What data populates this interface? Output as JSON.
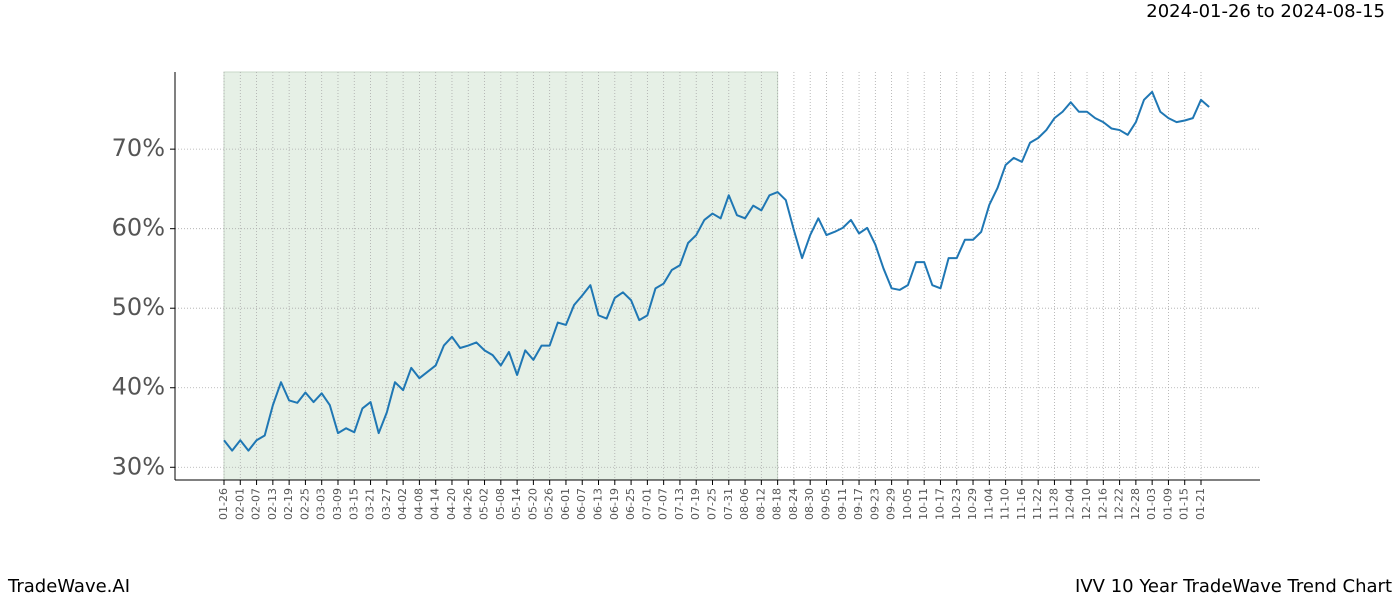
{
  "chart_data": {
    "type": "line",
    "title": "IVV 10 Year TradeWave Trend Chart",
    "subtitle": "2024-01-26 to 2024-08-15",
    "brand": "TradeWave.AI",
    "categories": [
      "01-26",
      null,
      "02-01",
      null,
      "02-07",
      null,
      "02-13",
      null,
      "02-19",
      null,
      "02-25",
      null,
      "03-03",
      null,
      "03-09",
      null,
      "03-15",
      null,
      "03-21",
      null,
      "03-27",
      null,
      "04-02",
      null,
      "04-08",
      null,
      "04-14",
      null,
      "04-20",
      null,
      "04-26",
      null,
      "05-02",
      null,
      "05-08",
      null,
      "05-14",
      null,
      "05-20",
      null,
      "05-26",
      null,
      "06-01",
      null,
      "06-07",
      null,
      "06-13",
      null,
      "06-19",
      null,
      "06-25",
      null,
      "07-01",
      null,
      "07-07",
      null,
      "07-13",
      null,
      "07-19",
      null,
      "07-25",
      null,
      "07-31",
      null,
      "08-06",
      null,
      "08-12",
      null,
      "08-18",
      null,
      "08-24",
      null,
      "08-30",
      null,
      "09-05",
      null,
      "09-11",
      null,
      "09-17",
      null,
      "09-23",
      null,
      "09-29",
      null,
      "10-05",
      null,
      "10-11",
      null,
      "10-17",
      null,
      "10-23",
      null,
      "10-29",
      null,
      "11-04",
      null,
      "11-10",
      null,
      "11-16",
      null,
      "11-22",
      null,
      "11-28",
      null,
      "12-04",
      null,
      "12-10",
      null,
      "12-16",
      null,
      "12-22",
      null,
      "12-28",
      null,
      "01-03",
      null,
      "01-09",
      null,
      "01-15",
      null,
      "01-21",
      null
    ],
    "series": [
      {
        "name": "IVV",
        "color": "#1f77b4",
        "values": [
          33.4,
          32.1,
          33.4,
          32.1,
          33.4,
          34.0,
          37.8,
          40.7,
          38.4,
          38.1,
          39.4,
          38.2,
          39.3,
          37.8,
          34.3,
          34.9,
          34.4,
          37.4,
          38.2,
          34.3,
          36.9,
          40.7,
          39.7,
          42.5,
          41.2,
          42.0,
          42.8,
          45.3,
          46.4,
          45.0,
          45.3,
          45.7,
          44.7,
          44.1,
          42.8,
          44.5,
          41.6,
          44.7,
          43.5,
          45.3,
          45.3,
          48.2,
          47.9,
          50.4,
          51.6,
          52.9,
          49.1,
          48.7,
          51.3,
          52.0,
          51.0,
          48.5,
          49.1,
          52.5,
          53.1,
          54.8,
          55.4,
          58.2,
          59.2,
          61.1,
          61.9,
          61.3,
          64.2,
          61.7,
          61.3,
          62.9,
          62.3,
          64.2,
          64.6,
          63.6,
          59.8,
          56.3,
          59.2,
          61.3,
          59.2,
          59.6,
          60.1,
          61.1,
          59.4,
          60.1,
          58.0,
          55.0,
          52.5,
          52.3,
          52.9,
          55.8,
          55.8,
          52.9,
          52.5,
          56.3,
          56.3,
          58.6,
          58.6,
          59.6,
          63.0,
          65.1,
          68.0,
          68.9,
          68.4,
          70.8,
          71.4,
          72.4,
          73.9,
          74.7,
          75.9,
          74.7,
          74.7,
          73.9,
          73.4,
          72.6,
          72.4,
          71.8,
          73.4,
          76.2,
          77.2,
          74.7,
          73.9,
          73.4,
          73.6,
          73.9,
          76.2,
          75.3
        ]
      }
    ],
    "shaded_range": [
      "01-26",
      "08-18"
    ],
    "shade_color": "#e6f0e6",
    "ylim": [
      28.4,
      79.7
    ],
    "yticks": [
      {
        "value": 30,
        "label": "30%"
      },
      {
        "value": 40,
        "label": "40%"
      },
      {
        "value": 50,
        "label": "50%"
      },
      {
        "value": 60,
        "label": "60%"
      },
      {
        "value": 70,
        "label": "70%"
      }
    ],
    "grid": true
  }
}
